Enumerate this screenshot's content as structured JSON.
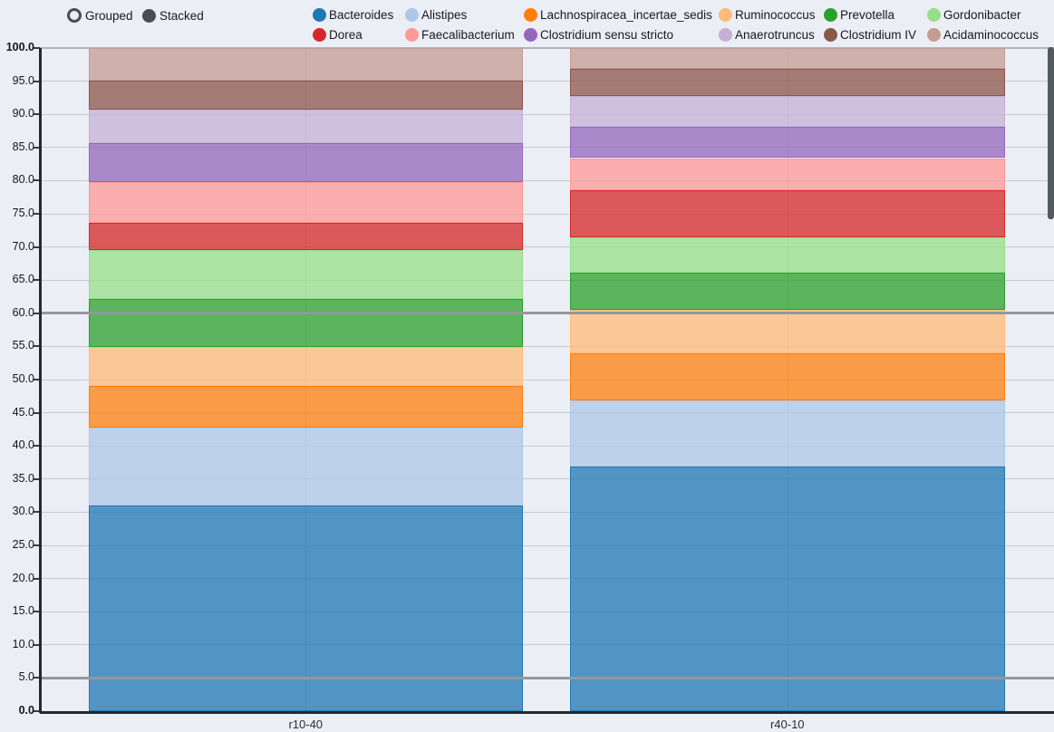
{
  "controls": {
    "modes": [
      {
        "label": "Grouped",
        "selected": false
      },
      {
        "label": "Stacked",
        "selected": true
      }
    ]
  },
  "chart_data": {
    "type": "bar",
    "stacked": true,
    "title": "",
    "xlabel": "",
    "ylabel": "",
    "ylim": [
      0,
      100
    ],
    "ytick_step": 5,
    "grid": true,
    "legend_position": "top",
    "categories": [
      "r10-40",
      "r40-10"
    ],
    "series": [
      {
        "name": "Bacteroides",
        "color": "#1f77b4",
        "values": [
          31.0,
          36.9
        ]
      },
      {
        "name": "Alistipes",
        "color": "#aec7e8",
        "values": [
          11.8,
          9.9
        ]
      },
      {
        "name": "Lachnospiracea_incertae_sedis",
        "color": "#ff7f0e",
        "values": [
          6.2,
          7.1
        ]
      },
      {
        "name": "Ruminococcus",
        "color": "#ffbb78",
        "values": [
          5.9,
          6.6
        ]
      },
      {
        "name": "Prevotella",
        "color": "#2ca02c",
        "values": [
          7.2,
          5.6
        ]
      },
      {
        "name": "Gordonibacter",
        "color": "#98df8a",
        "values": [
          7.4,
          5.4
        ]
      },
      {
        "name": "Dorea",
        "color": "#d62728",
        "values": [
          4.2,
          7.0
        ]
      },
      {
        "name": "Faecalibacterium",
        "color": "#ff9896",
        "values": [
          6.1,
          4.9
        ]
      },
      {
        "name": "Clostridium sensu stricto",
        "color": "#9467bd",
        "values": [
          5.9,
          4.7
        ]
      },
      {
        "name": "Anaerotruncus",
        "color": "#c5b0d5",
        "values": [
          5.0,
          4.7
        ]
      },
      {
        "name": "Clostridium IV",
        "color": "#8c564b",
        "values": [
          4.4,
          4.1
        ]
      },
      {
        "name": "Acidaminococcus",
        "color": "#c49c94",
        "values": [
          4.9,
          3.1
        ]
      }
    ],
    "y_tick_labels": [
      "0.0",
      "5.0",
      "10.0",
      "15.0",
      "20.0",
      "25.0",
      "30.0",
      "35.0",
      "40.0",
      "45.0",
      "50.0",
      "55.0",
      "60.0",
      "65.0",
      "70.0",
      "75.0",
      "80.0",
      "85.0",
      "90.0",
      "95.0",
      "100.0"
    ],
    "reference_lines": [
      5,
      60
    ],
    "bar_fill_opacity": 0.75
  }
}
